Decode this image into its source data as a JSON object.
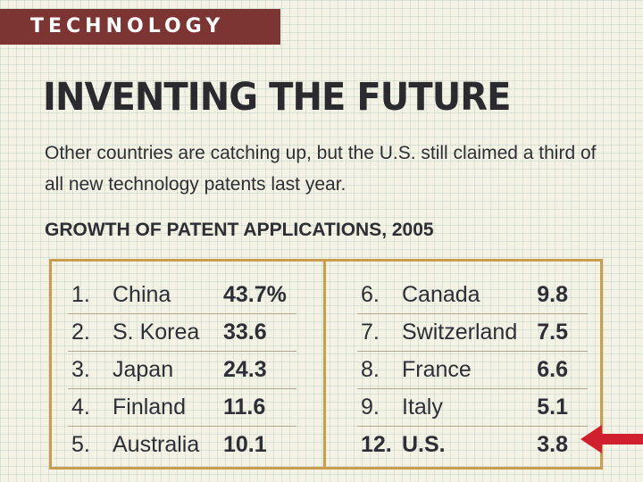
{
  "section_tag": "TECHNOLOGY",
  "headline": "INVENTING THE FUTURE",
  "dek": "Other countries are catching up, but the U.S. still claimed a third of all new technology patents last year.",
  "table": {
    "title": "GROWTH OF PATENT APPLICATIONS, 2005",
    "left_column": [
      {
        "rank": "1.",
        "country": "China",
        "value": "43.7%"
      },
      {
        "rank": "2.",
        "country": "S. Korea",
        "value": "33.6"
      },
      {
        "rank": "3.",
        "country": "Japan",
        "value": "24.3"
      },
      {
        "rank": "4.",
        "country": "Finland",
        "value": "11.6"
      },
      {
        "rank": "5.",
        "country": "Australia",
        "value": "10.1"
      }
    ],
    "right_column": [
      {
        "rank": "6.",
        "country": "Canada",
        "value": "9.8"
      },
      {
        "rank": "7.",
        "country": "Switzerland",
        "value": "7.5"
      },
      {
        "rank": "8.",
        "country": "France",
        "value": "6.6"
      },
      {
        "rank": "9.",
        "country": "Italy",
        "value": "5.1"
      },
      {
        "rank": "12.",
        "country": "U.S.",
        "value": "3.8"
      }
    ]
  },
  "colors": {
    "section_tag_bg": "#7d3533",
    "table_border": "#c99d4c",
    "highlight_arrow": "#d0202e",
    "text": "#2e2e33"
  },
  "annotation": {
    "icon": "arrow-left-icon",
    "points_to": "12. U.S."
  }
}
